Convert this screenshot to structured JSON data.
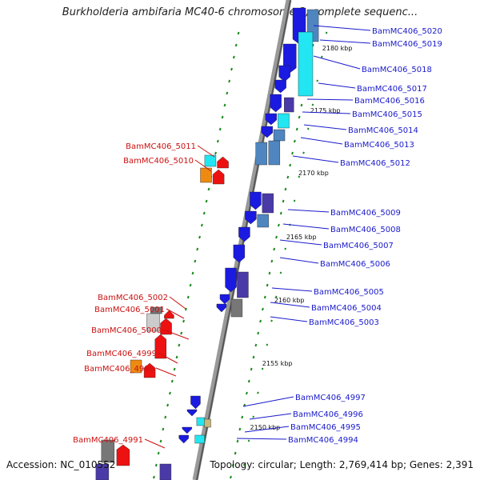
{
  "title": "Burkholderia ambifaria MC40-6 chromosome 2, complete sequenc...",
  "footer": {
    "accession": "Accession: NC_010552",
    "summary": "Topology: circular; Length: 2,769,414 bp; Genes: 2,391"
  },
  "colors": {
    "forward_label": "#1a1acc",
    "reverse_label": "#cc1111",
    "blue": "#1a1ae0",
    "cyan": "#22e6f2",
    "steel": "#4f86c0",
    "purple": "#4a3aa8",
    "gray": "#777777",
    "red": "#ee1111",
    "orange": "#ee8a11",
    "tan": "#c8b878",
    "tick": "#1a8a1a"
  },
  "kbp_marks": [
    "2180 kbp",
    "2175 kbp",
    "2170 kbp",
    "2165 kbp",
    "2160 kbp",
    "2155 kbp",
    "2150 kbp"
  ],
  "forward_genes": [
    "BamMC406_5020",
    "BamMC406_5019",
    "BamMC406_5018",
    "BamMC406_5017",
    "BamMC406_5016",
    "BamMC406_5015",
    "BamMC406_5014",
    "BamMC406_5013",
    "BamMC406_5012",
    "BamMC406_5009",
    "BamMC406_5008",
    "BamMC406_5007",
    "BamMC406_5006",
    "BamMC406_5005",
    "BamMC406_5004",
    "BamMC406_5003",
    "BamMC406_4997",
    "BamMC406_4996",
    "BamMC406_4995",
    "BamMC406_4994"
  ],
  "reverse_genes": [
    "BamMC406_5011",
    "BamMC406_5010",
    "BamMC406_5002",
    "BamMC406_5001",
    "BamMC406_5000",
    "BamMC406_4999",
    "BamMC406_4998",
    "BamMC406_4991"
  ]
}
